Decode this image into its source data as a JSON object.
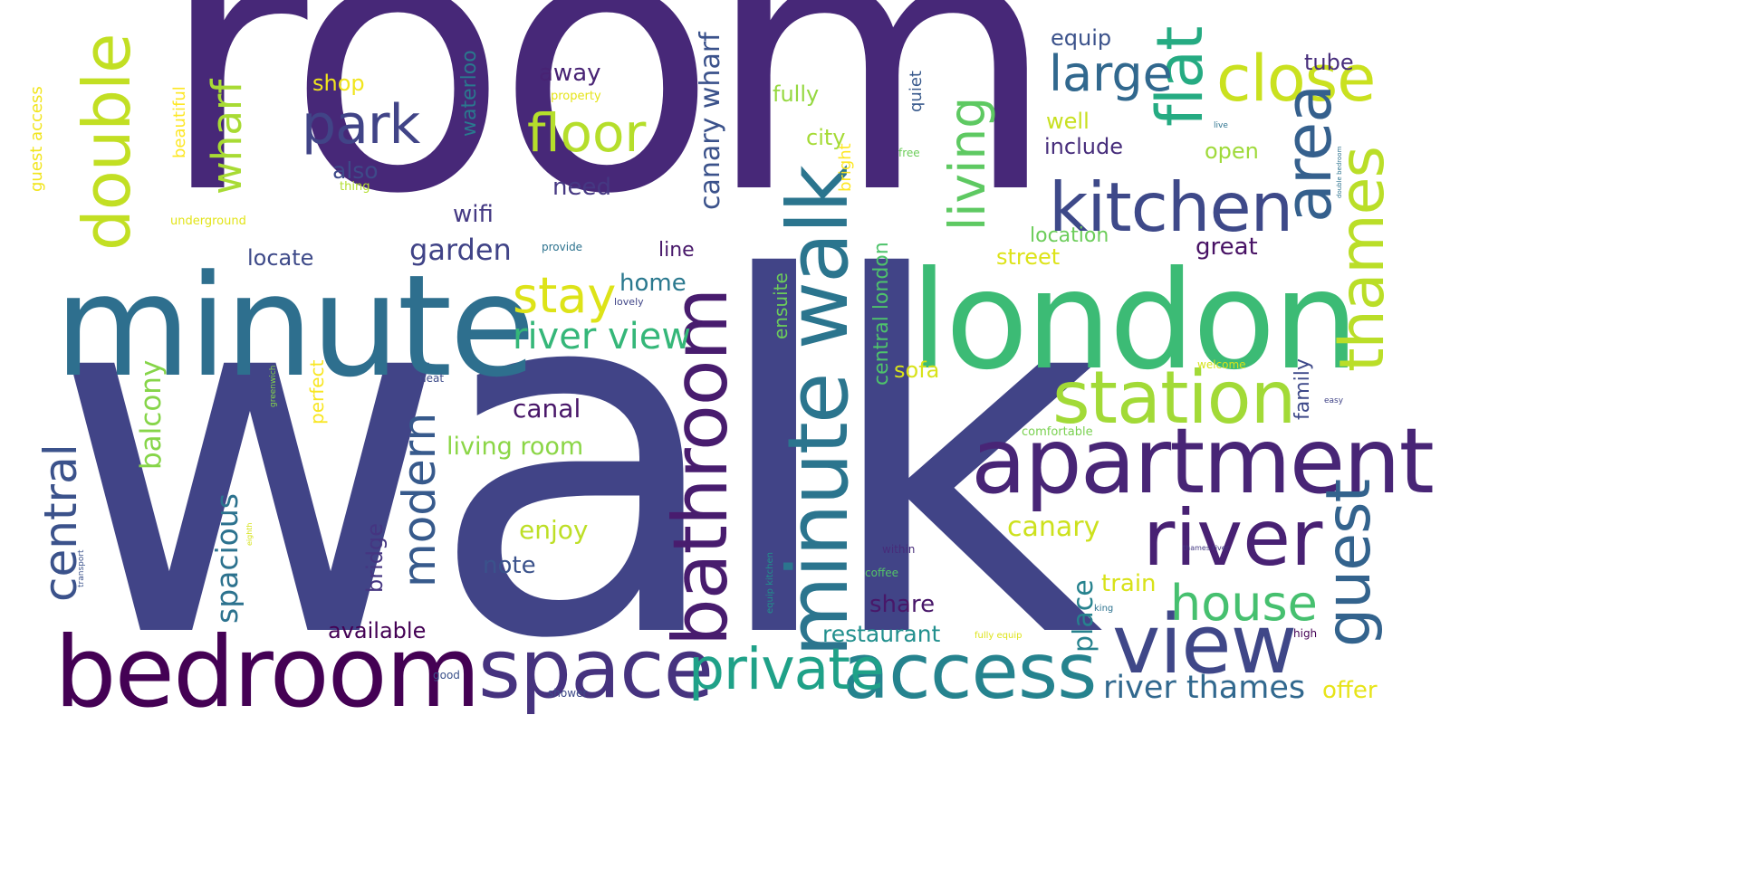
{
  "words": [
    {
      "text": "room",
      "color": "#472878"
    },
    {
      "text": "walk",
      "color": "#414487"
    },
    {
      "text": "minute",
      "color": "#2e6f8e"
    },
    {
      "text": "london",
      "color": "#3cbb75"
    },
    {
      "text": "apartment",
      "color": "#482576"
    },
    {
      "text": "minute walk",
      "color": "#2b758e"
    },
    {
      "text": "bedroom",
      "color": "#440154"
    },
    {
      "text": "access",
      "color": "#25838e"
    },
    {
      "text": "space",
      "color": "#46337f"
    },
    {
      "text": "view",
      "color": "#3f4788"
    },
    {
      "text": "river",
      "color": "#482173"
    },
    {
      "text": "bathroom",
      "color": "#481c6e"
    },
    {
      "text": "station",
      "color": "#a2da37"
    },
    {
      "text": "kitchen",
      "color": "#3e4989"
    },
    {
      "text": "double",
      "color": "#c2df23"
    },
    {
      "text": "flat",
      "color": "#25ab82"
    },
    {
      "text": "close",
      "color": "#cae11f"
    },
    {
      "text": "area",
      "color": "#35608d"
    },
    {
      "text": "thames",
      "color": "#bade28"
    },
    {
      "text": "guest",
      "color": "#33638d"
    },
    {
      "text": "private",
      "color": "#1fa188"
    },
    {
      "text": "house",
      "color": "#46c06f"
    },
    {
      "text": "living",
      "color": "#5ec962"
    },
    {
      "text": "floor",
      "color": "#b5de2b"
    },
    {
      "text": "park",
      "color": "#414487"
    },
    {
      "text": "large",
      "color": "#31688e"
    },
    {
      "text": "stay",
      "color": "#dde318"
    },
    {
      "text": "modern",
      "color": "#375a8c"
    },
    {
      "text": "central",
      "color": "#3b528b"
    },
    {
      "text": "wharf",
      "color": "#a8db34"
    },
    {
      "text": "river view",
      "color": "#35b779"
    },
    {
      "text": "river thames",
      "color": "#31688e"
    },
    {
      "text": "canary wharf",
      "color": "#3b528b"
    },
    {
      "text": "garden",
      "color": "#404387"
    },
    {
      "text": "spacious",
      "color": "#2c728e"
    },
    {
      "text": "balcony",
      "color": "#86d549"
    },
    {
      "text": "canary",
      "color": "#cde11d"
    },
    {
      "text": "living room",
      "color": "#8bd646"
    },
    {
      "text": "canal",
      "color": "#481668"
    },
    {
      "text": "restaurant",
      "color": "#218f8d"
    },
    {
      "text": "offer",
      "color": "#e7e419"
    },
    {
      "text": "available",
      "color": "#440154"
    },
    {
      "text": "place",
      "color": "#26828e"
    },
    {
      "text": "locate",
      "color": "#3e4a89"
    },
    {
      "text": "home",
      "color": "#2a788e"
    },
    {
      "text": "enjoy",
      "color": "#bddf26"
    },
    {
      "text": "note",
      "color": "#3b528b"
    },
    {
      "text": "bridge",
      "color": "#453581"
    },
    {
      "text": "line",
      "color": "#48186a"
    },
    {
      "text": "ensuite",
      "color": "#6ccd5a"
    },
    {
      "text": "central london",
      "color": "#4ec36b"
    },
    {
      "text": "sofa",
      "color": "#d8e219"
    },
    {
      "text": "share",
      "color": "#481769"
    },
    {
      "text": "train",
      "color": "#d8e219"
    },
    {
      "text": "street",
      "color": "#dde318"
    },
    {
      "text": "great",
      "color": "#471164"
    },
    {
      "text": "location",
      "color": "#6ccd5a"
    },
    {
      "text": "family",
      "color": "#3e4989"
    },
    {
      "text": "fully",
      "color": "#95d840"
    },
    {
      "text": "city",
      "color": "#a5db36"
    },
    {
      "text": "wifi",
      "color": "#443983"
    },
    {
      "text": "need",
      "color": "#453882"
    },
    {
      "text": "also",
      "color": "#3e4a89"
    },
    {
      "text": "away",
      "color": "#482374"
    },
    {
      "text": "shop",
      "color": "#f1e51d"
    },
    {
      "text": "waterloo",
      "color": "#2a788e"
    },
    {
      "text": "equip",
      "color": "#3b528b"
    },
    {
      "text": "tube",
      "color": "#472d7b"
    },
    {
      "text": "include",
      "color": "#472d7b"
    },
    {
      "text": "well",
      "color": "#c8e020"
    },
    {
      "text": "open",
      "color": "#9fda3a"
    },
    {
      "text": "quiet",
      "color": "#38598c"
    },
    {
      "text": "bright",
      "color": "#fde725"
    },
    {
      "text": "perfect",
      "color": "#f8e621"
    },
    {
      "text": "beautiful",
      "color": "#fde725"
    },
    {
      "text": "guest access",
      "color": "#f1e51d"
    },
    {
      "text": "underground",
      "color": "#e2e418"
    },
    {
      "text": "property",
      "color": "#e5e419"
    },
    {
      "text": "thing",
      "color": "#b2dd2d"
    },
    {
      "text": "provide",
      "color": "#2c728e"
    },
    {
      "text": "free",
      "color": "#6ccd5a"
    },
    {
      "text": "live",
      "color": "#2c728e"
    },
    {
      "text": "lovely",
      "color": "#404688"
    },
    {
      "text": "greenwich",
      "color": "#84d44b"
    },
    {
      "text": "neat",
      "color": "#3e4c8a"
    },
    {
      "text": "welcome",
      "color": "#d5e21a"
    },
    {
      "text": "easy",
      "color": "#414487"
    },
    {
      "text": "comfortable",
      "color": "#7ad151"
    },
    {
      "text": "double bedroom",
      "color": "#2c728e"
    },
    {
      "text": "thames river",
      "color": "#443a83"
    },
    {
      "text": "within",
      "color": "#472c7a"
    },
    {
      "text": "coffee",
      "color": "#54c568"
    },
    {
      "text": "equip kitchen",
      "color": "#21918c"
    },
    {
      "text": "fully equip",
      "color": "#dde318"
    },
    {
      "text": "king",
      "color": "#2c728e"
    },
    {
      "text": "high",
      "color": "#440154"
    },
    {
      "text": "good",
      "color": "#3b528b"
    },
    {
      "text": "shower",
      "color": "#3e4a89"
    },
    {
      "text": "eighth",
      "color": "#d5e21a"
    },
    {
      "text": "transport",
      "color": "#3b528b"
    }
  ]
}
